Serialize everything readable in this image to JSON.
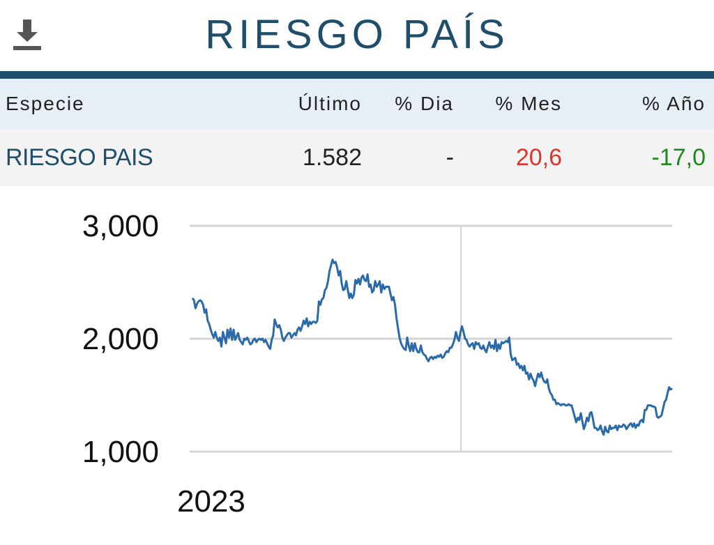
{
  "header": {
    "title": "RIESGO PAÍS",
    "download_icon": "download-icon"
  },
  "colors": {
    "brand": "#1f4e6b",
    "negative": "#e0332b",
    "positive": "#1a8a1a",
    "line": "#2b6aa8"
  },
  "table": {
    "columns": [
      "Especie",
      "Último",
      "% Dia",
      "% Mes",
      "% Año"
    ],
    "rows": [
      {
        "especie": "RIESGO PAIS",
        "ultimo": "1.582",
        "dia": "-",
        "mes": "20,6",
        "ano": "-17,0"
      }
    ]
  },
  "chart_data": {
    "type": "line",
    "ylim": [
      1000,
      3000
    ],
    "y_ticks": [
      3000,
      2000,
      1000
    ],
    "y_tick_labels": [
      "3,000",
      "2,000",
      "1,000"
    ],
    "x_tick_labels": [
      "2023"
    ],
    "grid": true,
    "series": [
      {
        "values": [
          2360,
          2340,
          2270,
          2310,
          2330,
          2340,
          2330,
          2300,
          2230,
          2260,
          2160,
          2130,
          2080,
          2040,
          2010,
          2060,
          2010,
          1980,
          2010,
          1930,
          2060,
          2010,
          1960,
          2080,
          2010,
          2090,
          1990,
          2080,
          1990,
          2020,
          2050,
          1990,
          1970,
          1950,
          2000,
          1990,
          2010,
          1980,
          1950,
          1960,
          1990,
          2000,
          1970,
          1990,
          2000,
          1990,
          2000,
          1970,
          1990,
          1960,
          1930,
          1910,
          1990,
          2030,
          2170,
          2130,
          2100,
          2120,
          2080,
          2010,
          1980,
          2010,
          2030,
          2050,
          2050,
          2010,
          2030,
          2050,
          2030,
          2080,
          2100,
          2070,
          2110,
          2160,
          2130,
          2180,
          2110,
          2150,
          2130,
          2150,
          2150,
          2140,
          2160,
          2330,
          2300,
          2350,
          2360,
          2430,
          2450,
          2510,
          2600,
          2650,
          2700,
          2670,
          2680,
          2630,
          2560,
          2600,
          2490,
          2430,
          2440,
          2510,
          2430,
          2360,
          2400,
          2360,
          2390,
          2520,
          2490,
          2530,
          2480,
          2540,
          2560,
          2520,
          2510,
          2570,
          2460,
          2480,
          2410,
          2430,
          2510,
          2460,
          2480,
          2510,
          2410,
          2480,
          2440,
          2460,
          2460,
          2460,
          2400,
          2340,
          2370,
          2300,
          2180,
          2090,
          2010,
          1960,
          1930,
          1910,
          1900,
          2010,
          1940,
          1890,
          1960,
          1890,
          1960,
          1910,
          1880,
          1880,
          1940,
          1880,
          1860,
          1850,
          1820,
          1800,
          1830,
          1840,
          1820,
          1840,
          1830,
          1850,
          1840,
          1860,
          1830,
          1840,
          1870,
          1890,
          1880,
          1920,
          1920,
          1950,
          1990,
          2060,
          2010,
          1980,
          2060,
          2110,
          2060,
          2000,
          1990,
          1950,
          1930,
          1950,
          1960,
          1910,
          1970,
          1950,
          1960,
          1920,
          1910,
          1940,
          1900,
          1880,
          1930,
          1970,
          1920,
          1940,
          1910,
          1990,
          1890,
          1950,
          1910,
          1970,
          1960,
          1970,
          1980,
          1970,
          2010,
          1860,
          1810,
          1820,
          1830,
          1770,
          1780,
          1740,
          1760,
          1720,
          1760,
          1690,
          1700,
          1640,
          1690,
          1650,
          1630,
          1580,
          1640,
          1690,
          1660,
          1700,
          1650,
          1620,
          1610,
          1640,
          1560,
          1520,
          1500,
          1460,
          1460,
          1420,
          1430,
          1420,
          1410,
          1420,
          1420,
          1410,
          1410,
          1420,
          1410,
          1410,
          1360,
          1310,
          1260,
          1300,
          1280,
          1340,
          1270,
          1200,
          1240,
          1300,
          1270,
          1340,
          1350,
          1290,
          1210,
          1210,
          1190,
          1200,
          1230,
          1180,
          1150,
          1220,
          1180,
          1170,
          1230,
          1200,
          1210,
          1210,
          1230,
          1190,
          1230,
          1220,
          1220,
          1240,
          1230,
          1200,
          1220,
          1240,
          1250,
          1220,
          1250,
          1210,
          1240,
          1230,
          1270,
          1280,
          1260,
          1370,
          1370,
          1410,
          1410,
          1410,
          1400,
          1400,
          1390,
          1310,
          1300,
          1310,
          1320,
          1380,
          1440,
          1460,
          1520,
          1570,
          1550,
          1560
        ]
      }
    ]
  }
}
